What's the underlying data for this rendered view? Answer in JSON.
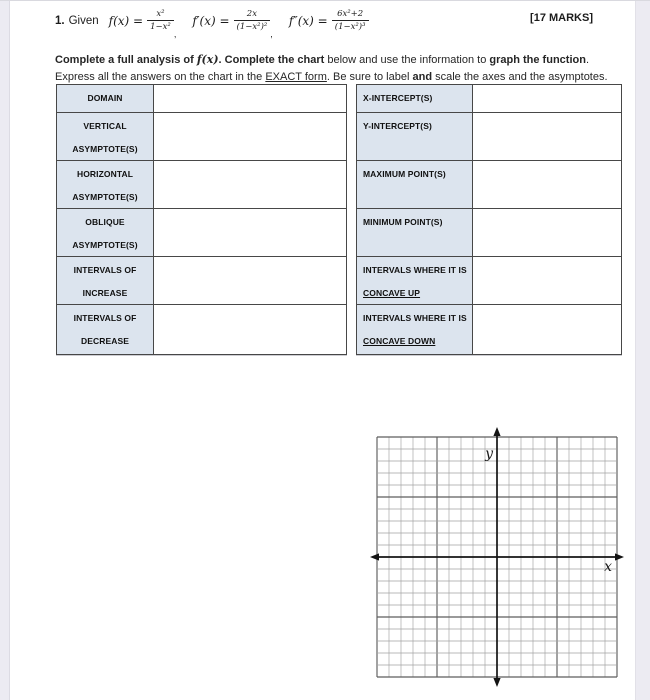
{
  "header": {
    "problem_number": "1.",
    "given_label": "Given",
    "marks": "[17 MARKS]",
    "formulas": [
      {
        "lhs": "f(x) =",
        "numerator": "x²",
        "denominator": "1−x²",
        "trailing": ","
      },
      {
        "lhs": "f′(x) =",
        "numerator": "2x",
        "denominator": "(1−x²)²",
        "trailing": ","
      },
      {
        "lhs": "f″(x) =",
        "numerator": "6x²+2",
        "denominator": "(1−x²)³",
        "trailing": ""
      }
    ]
  },
  "instructions": {
    "segments": [
      {
        "text": "Complete a full analysis of ",
        "bold": true
      },
      {
        "text": "f(x)",
        "bold": true,
        "math": true
      },
      {
        "text": ". Complete the chart",
        "bold": true
      },
      {
        "text": " below and use the information to "
      },
      {
        "text": "graph the function",
        "bold": true
      },
      {
        "text": ". Express all the answers on the chart in the "
      },
      {
        "text": "EXACT form",
        "underline": true
      },
      {
        "text": ". Be sure to label "
      },
      {
        "text": "and",
        "bold": true
      },
      {
        "text": " scale the axes and the asymptotes."
      }
    ]
  },
  "chart": {
    "left_table": {
      "rows": [
        {
          "label_lines": [
            {
              "text": "DOMAIN"
            }
          ],
          "value": ""
        },
        {
          "label_lines": [
            {
              "text": "VERTICAL"
            },
            {
              "text": "ASYMPTOTE(S)"
            }
          ],
          "value": ""
        },
        {
          "label_lines": [
            {
              "text": "HORIZONTAL"
            },
            {
              "text": "ASYMPTOTE(S)"
            }
          ],
          "value": ""
        },
        {
          "label_lines": [
            {
              "text": "OBLIQUE"
            },
            {
              "text": "ASYMPTOTE(S)"
            }
          ],
          "value": ""
        },
        {
          "label_lines": [
            {
              "text": "INTERVALS OF"
            },
            {
              "text": "INCREASE"
            }
          ],
          "value": ""
        },
        {
          "label_lines": [
            {
              "text": "INTERVALS OF"
            },
            {
              "text": "DECREASE"
            }
          ],
          "value": ""
        }
      ]
    },
    "right_table": {
      "rows": [
        {
          "label_lines": [
            {
              "text": "X-INTERCEPT(S)"
            }
          ],
          "value": ""
        },
        {
          "label_lines": [
            {
              "text": "Y-INTERCEPT(S)"
            }
          ],
          "value": ""
        },
        {
          "label_lines": [
            {
              "text": "MAXIMUM POINT(S)"
            }
          ],
          "value": ""
        },
        {
          "label_lines": [
            {
              "text": "MINIMUM POINT(S)"
            }
          ],
          "value": ""
        },
        {
          "label_lines": [
            {
              "text": "INTERVALS WHERE IT IS"
            },
            {
              "text": "CONCAVE UP",
              "underline": true
            }
          ],
          "value": ""
        },
        {
          "label_lines": [
            {
              "text": "INTERVALS WHERE IT IS"
            },
            {
              "text": "CONCAVE DOWN",
              "underline": true
            }
          ],
          "value": ""
        }
      ]
    }
  },
  "graph": {
    "x_axis_label": "x",
    "y_axis_label": "y",
    "grid_columns": 20,
    "grid_rows": 20,
    "major_line_every": 5
  },
  "colors": {
    "label_cell_fill": "#dce4ee",
    "table_border": "#474747",
    "grid_minor_line": "#a2a2a2",
    "grid_major_line": "#5e5e5e",
    "axis_line": "#141414",
    "page_margin": "#ecebf2"
  }
}
